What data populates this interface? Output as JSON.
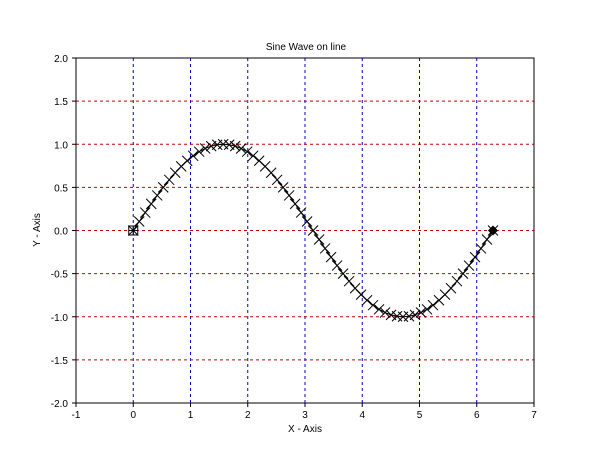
{
  "chart_data": {
    "type": "line",
    "title": "Sine Wave on line",
    "xlabel": "X - Axis",
    "ylabel": "Y - Axis",
    "xlim": [
      -1,
      7
    ],
    "ylim": [
      -2.0,
      2.0
    ],
    "xticks": [
      "-1",
      "0",
      "1",
      "2",
      "3",
      "4",
      "5",
      "6",
      "7"
    ],
    "yticks": [
      "2.0",
      "1.5",
      "1.0",
      "0.5",
      "0.0",
      "-0.5",
      "-1.0",
      "-1.5",
      "-2.0"
    ],
    "grid": true,
    "grid_colors": {
      "horizontal": "#cc0000",
      "vertical": "#0000cc"
    },
    "series": [
      {
        "function": "sin(x)",
        "x_start": 0,
        "x_end": 6.2832,
        "point_count": 61,
        "marker": "x",
        "color": "#000000",
        "start_marker": "square-plus",
        "end_marker": "diamond"
      }
    ]
  }
}
